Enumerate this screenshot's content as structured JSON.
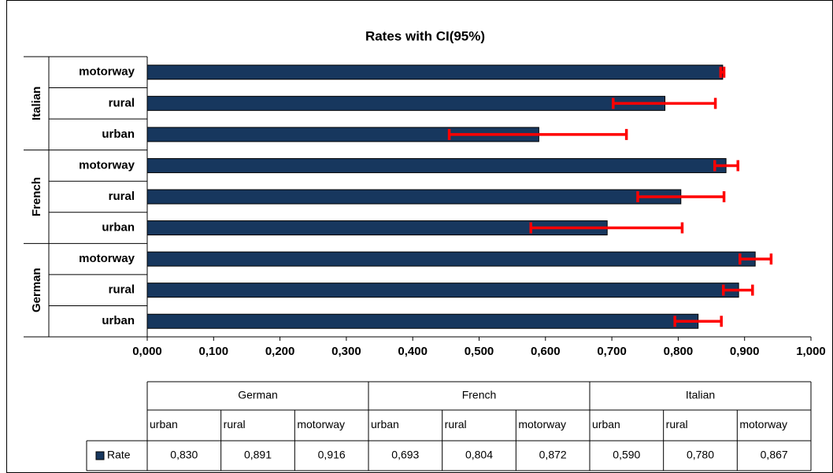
{
  "chart_data": {
    "type": "bar",
    "orientation": "horizontal",
    "title": "Rates with CI(95%)",
    "groups": [
      "German",
      "French",
      "Italian"
    ],
    "categories": [
      "urban",
      "rural",
      "motorway",
      "urban",
      "rural",
      "motorway",
      "urban",
      "rural",
      "motorway"
    ],
    "series": [
      {
        "name": "Rate",
        "color": "#17375e",
        "error_color": "#ff0000",
        "values": [
          0.83,
          0.891,
          0.916,
          0.693,
          0.804,
          0.872,
          0.59,
          0.78,
          0.867
        ],
        "value_labels": [
          "0,830",
          "0,891",
          "0,916",
          "0,693",
          "0,804",
          "0,872",
          "0,590",
          "0,780",
          "0,867"
        ],
        "ci_low": [
          0.795,
          0.868,
          0.893,
          0.578,
          0.739,
          0.855,
          0.455,
          0.702,
          0.864
        ],
        "ci_high": [
          0.865,
          0.912,
          0.94,
          0.806,
          0.869,
          0.89,
          0.722,
          0.856,
          0.869
        ]
      }
    ],
    "xlim": [
      0,
      1
    ],
    "xticks": [
      {
        "value": 0,
        "label": "0,000"
      },
      {
        "value": 0.1,
        "label": "0,100"
      },
      {
        "value": 0.2,
        "label": "0,200"
      },
      {
        "value": 0.3,
        "label": "0,300"
      },
      {
        "value": 0.4,
        "label": "0,400"
      },
      {
        "value": 0.5,
        "label": "0,500"
      },
      {
        "value": 0.6,
        "label": "0,600"
      },
      {
        "value": 0.7,
        "label": "0,700"
      },
      {
        "value": 0.8,
        "label": "0,800"
      },
      {
        "value": 0.9,
        "label": "0,900"
      },
      {
        "value": 1,
        "label": "1,000"
      }
    ],
    "data_table": true
  }
}
